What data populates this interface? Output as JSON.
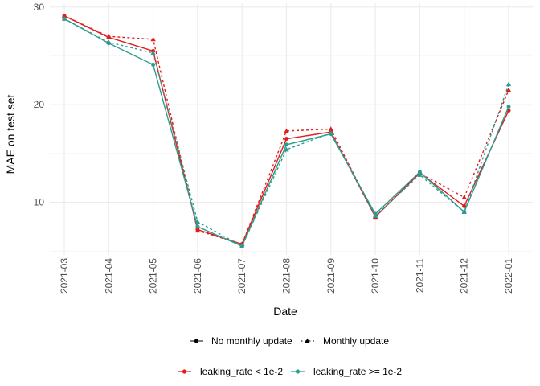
{
  "chart_data": {
    "type": "line",
    "xlabel": "Date",
    "ylabel": "MAE on test set",
    "x": [
      "2021-03",
      "2021-04",
      "2021-05",
      "2021-06",
      "2021-07",
      "2021-08",
      "2021-09",
      "2021-10",
      "2021-11",
      "2021-12",
      "2022-01"
    ],
    "ylim": [
      4.6,
      30.4
    ],
    "yticks": [
      10,
      20,
      30
    ],
    "grid": true,
    "legend_position": "bottom",
    "legends": {
      "linetype": [
        {
          "label": "No monthly update",
          "key": "solid",
          "marker": "circle"
        },
        {
          "label": "Monthly update",
          "key": "dotted",
          "marker": "triangle"
        }
      ],
      "color": [
        {
          "label": "leaking_rate < 1e-2",
          "key": "red"
        },
        {
          "label": "leaking_rate >= 1e-2",
          "key": "teal"
        }
      ]
    },
    "colors": {
      "red": "#e41a1c",
      "teal": "#2a9d8f"
    },
    "series": [
      {
        "color": "red",
        "linetype": "solid",
        "marker": "circle",
        "values": [
          29.1,
          26.9,
          25.5,
          7.2,
          5.7,
          16.5,
          17.2,
          8.5,
          13.0,
          9.6,
          19.4
        ]
      },
      {
        "color": "red",
        "linetype": "dotted",
        "marker": "triangle",
        "values": [
          29.1,
          27.0,
          26.7,
          7.1,
          5.7,
          17.3,
          17.5,
          8.5,
          13.0,
          10.5,
          21.5
        ]
      },
      {
        "color": "teal",
        "linetype": "solid",
        "marker": "circle",
        "values": [
          28.8,
          26.3,
          24.1,
          7.5,
          5.5,
          15.9,
          17.0,
          8.8,
          13.1,
          9.0,
          19.8
        ]
      },
      {
        "color": "teal",
        "linetype": "dotted",
        "marker": "triangle",
        "values": [
          28.8,
          26.4,
          25.3,
          8.0,
          5.5,
          15.4,
          17.1,
          8.6,
          12.8,
          9.0,
          22.1
        ]
      }
    ]
  }
}
